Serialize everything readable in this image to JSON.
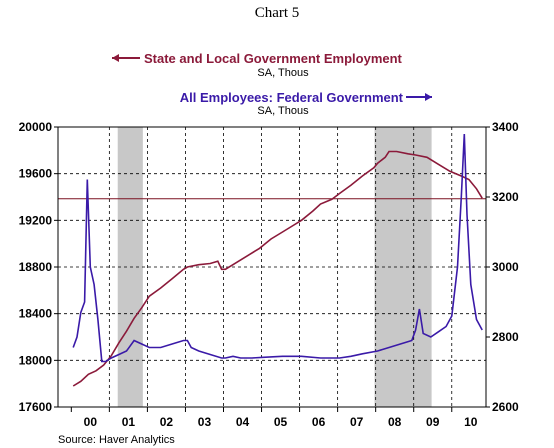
{
  "chart_data": {
    "type": "line",
    "title": "Chart 5",
    "x_labels": [
      "00",
      "01",
      "02",
      "03",
      "04",
      "05",
      "06",
      "07",
      "08",
      "09",
      "10"
    ],
    "recessions": [
      [
        2001.17,
        2001.83
      ],
      [
        2007.92,
        2009.42
      ]
    ],
    "left_axis": {
      "ylim": [
        17600,
        20000
      ],
      "ticks": [
        17600,
        18000,
        18400,
        18800,
        19200,
        19600,
        20000
      ]
    },
    "right_axis": {
      "ylim": [
        2600,
        3400
      ],
      "ticks": [
        2600,
        2800,
        3000,
        3200,
        3400
      ]
    },
    "reference_line": {
      "axis": "left",
      "value": 19385,
      "color": "#7b1020"
    },
    "series": [
      {
        "name": "State and Local Government Employment",
        "subtitle": "SA, Thous",
        "axis": "left",
        "color": "#8b1a3a",
        "points": [
          [
            2000.0,
            17780
          ],
          [
            2000.2,
            17820
          ],
          [
            2000.4,
            17880
          ],
          [
            2000.6,
            17910
          ],
          [
            2000.8,
            17960
          ],
          [
            2001.0,
            18040
          ],
          [
            2001.2,
            18150
          ],
          [
            2001.4,
            18250
          ],
          [
            2001.6,
            18360
          ],
          [
            2001.8,
            18450
          ],
          [
            2002.0,
            18550
          ],
          [
            2002.3,
            18620
          ],
          [
            2002.6,
            18700
          ],
          [
            2002.9,
            18780
          ],
          [
            2003.0,
            18800
          ],
          [
            2003.3,
            18820
          ],
          [
            2003.6,
            18830
          ],
          [
            2003.8,
            18850
          ],
          [
            2003.9,
            18780
          ],
          [
            2004.0,
            18780
          ],
          [
            2004.3,
            18840
          ],
          [
            2004.6,
            18900
          ],
          [
            2004.9,
            18960
          ],
          [
            2005.2,
            19040
          ],
          [
            2005.5,
            19100
          ],
          [
            2005.8,
            19160
          ],
          [
            2006.0,
            19200
          ],
          [
            2006.3,
            19280
          ],
          [
            2006.5,
            19340
          ],
          [
            2006.8,
            19380
          ],
          [
            2007.0,
            19430
          ],
          [
            2007.3,
            19500
          ],
          [
            2007.6,
            19580
          ],
          [
            2007.9,
            19650
          ],
          [
            2008.0,
            19690
          ],
          [
            2008.2,
            19740
          ],
          [
            2008.3,
            19790
          ],
          [
            2008.5,
            19790
          ],
          [
            2008.8,
            19770
          ],
          [
            2009.0,
            19760
          ],
          [
            2009.3,
            19740
          ],
          [
            2009.6,
            19680
          ],
          [
            2009.9,
            19620
          ],
          [
            2010.2,
            19580
          ],
          [
            2010.4,
            19550
          ],
          [
            2010.6,
            19470
          ],
          [
            2010.75,
            19390
          ]
        ]
      },
      {
        "name": "All Employees: Federal Government",
        "subtitle": "SA, Thous",
        "axis": "right",
        "color": "#3a1aa8",
        "points": [
          [
            2000.0,
            2770
          ],
          [
            2000.1,
            2800
          ],
          [
            2000.2,
            2870
          ],
          [
            2000.3,
            2900
          ],
          [
            2000.37,
            3250
          ],
          [
            2000.45,
            3000
          ],
          [
            2000.55,
            2950
          ],
          [
            2000.65,
            2850
          ],
          [
            2000.75,
            2730
          ],
          [
            2000.85,
            2730
          ],
          [
            2001.0,
            2740
          ],
          [
            2001.2,
            2750
          ],
          [
            2001.4,
            2760
          ],
          [
            2001.6,
            2790
          ],
          [
            2001.8,
            2780
          ],
          [
            2002.0,
            2770
          ],
          [
            2002.3,
            2770
          ],
          [
            2002.6,
            2780
          ],
          [
            2002.9,
            2790
          ],
          [
            2003.0,
            2790
          ],
          [
            2003.1,
            2770
          ],
          [
            2003.3,
            2760
          ],
          [
            2003.6,
            2750
          ],
          [
            2003.9,
            2740
          ],
          [
            2004.0,
            2740
          ],
          [
            2004.2,
            2745
          ],
          [
            2004.4,
            2740
          ],
          [
            2004.7,
            2740
          ],
          [
            2005.0,
            2742
          ],
          [
            2005.5,
            2745
          ],
          [
            2006.0,
            2745
          ],
          [
            2006.5,
            2740
          ],
          [
            2007.0,
            2740
          ],
          [
            2007.3,
            2745
          ],
          [
            2007.6,
            2752
          ],
          [
            2008.0,
            2760
          ],
          [
            2008.3,
            2770
          ],
          [
            2008.6,
            2780
          ],
          [
            2008.9,
            2790
          ],
          [
            2009.0,
            2820
          ],
          [
            2009.1,
            2880
          ],
          [
            2009.2,
            2810
          ],
          [
            2009.4,
            2800
          ],
          [
            2009.6,
            2815
          ],
          [
            2009.8,
            2830
          ],
          [
            2009.95,
            2860
          ],
          [
            2010.1,
            3000
          ],
          [
            2010.2,
            3200
          ],
          [
            2010.28,
            3380
          ],
          [
            2010.35,
            3150
          ],
          [
            2010.45,
            2950
          ],
          [
            2010.6,
            2850
          ],
          [
            2010.75,
            2820
          ]
        ]
      }
    ],
    "source": "Source: Haver Analytics"
  }
}
